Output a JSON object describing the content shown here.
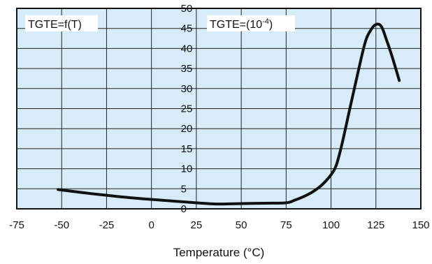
{
  "chart_data": {
    "type": "line",
    "xlabel": "Temperature (°C)",
    "ylabel": "",
    "xlim": [
      -75,
      150
    ],
    "ylim": [
      0,
      50
    ],
    "x_ticks": [
      -75,
      -50,
      -25,
      0,
      25,
      50,
      75,
      100,
      125,
      150
    ],
    "y_ticks": [
      0,
      5,
      10,
      15,
      20,
      25,
      30,
      35,
      40,
      45,
      50
    ],
    "grid": true,
    "colors": {
      "plot_background": "#d7ecf8",
      "line": "#111111",
      "grid": "#222222"
    },
    "annotations": [
      {
        "text": "TGTE=f(T)",
        "position": "top-left"
      },
      {
        "text_base": "TGTE=(10",
        "text_exp": "-4",
        "text_tail": ")",
        "position": "top-center"
      }
    ],
    "series": [
      {
        "x": [
          -52,
          -30,
          -10,
          10,
          25,
          37,
          50,
          62,
          75,
          80,
          85,
          90,
          95,
          100,
          103,
          106,
          110,
          115,
          119,
          122,
          125,
          128,
          131,
          134,
          138
        ],
        "y": [
          4.8,
          3.6,
          2.7,
          2.0,
          1.5,
          1.2,
          1.3,
          1.4,
          1.5,
          2.2,
          3.1,
          4.3,
          6.0,
          8.5,
          11.0,
          16.0,
          24.0,
          34.0,
          41.5,
          44.5,
          46.0,
          45.5,
          42.0,
          38.0,
          32.0
        ]
      }
    ]
  }
}
